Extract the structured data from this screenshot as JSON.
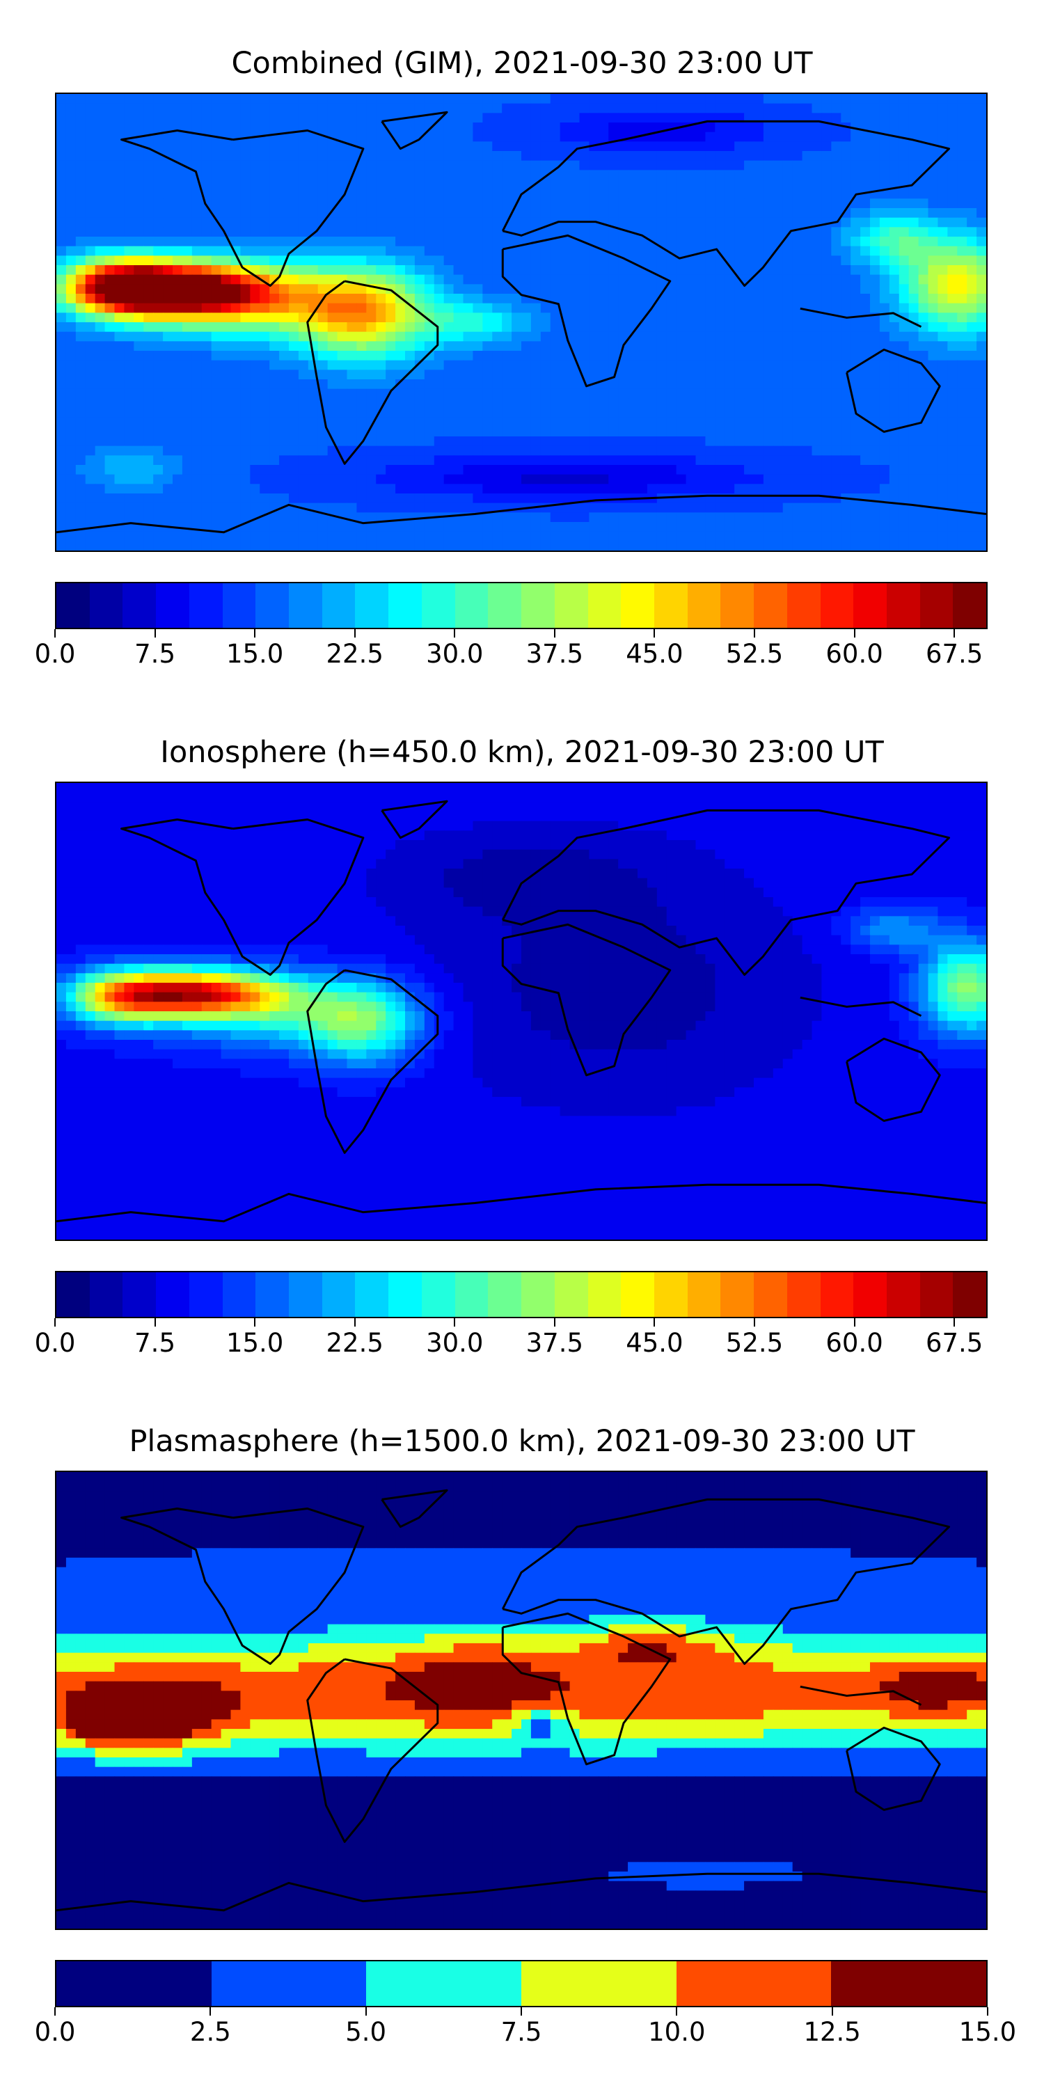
{
  "panels": [
    {
      "title": "Combined (GIM), 2021-09-30 23:00 UT",
      "colorbar": {
        "ticks": [
          "0.0",
          "7.5",
          "15.0",
          "22.5",
          "30.0",
          "37.5",
          "45.0",
          "52.5",
          "60.0",
          "67.5"
        ],
        "range": [
          0,
          70
        ],
        "levels": 28
      }
    },
    {
      "title": "Ionosphere  (h=450.0 km), 2021-09-30 23:00 UT",
      "colorbar": {
        "ticks": [
          "0.0",
          "7.5",
          "15.0",
          "22.5",
          "30.0",
          "37.5",
          "45.0",
          "52.5",
          "60.0",
          "67.5"
        ],
        "range": [
          0,
          70
        ],
        "levels": 28
      }
    },
    {
      "title": "Plasmasphere (h=1500.0 km), 2021-09-30 23:00 UT",
      "colorbar": {
        "ticks": [
          "0.0",
          "2.5",
          "5.0",
          "7.5",
          "10.0",
          "12.5",
          "15.0"
        ],
        "range": [
          0,
          15
        ],
        "levels": 6
      }
    }
  ],
  "colormap": "jet",
  "colormap_stops": [
    "#00007f",
    "#0000ff",
    "#007fff",
    "#00ffff",
    "#7fff7f",
    "#ffff00",
    "#ff7f00",
    "#ff0000",
    "#7f0000"
  ]
}
